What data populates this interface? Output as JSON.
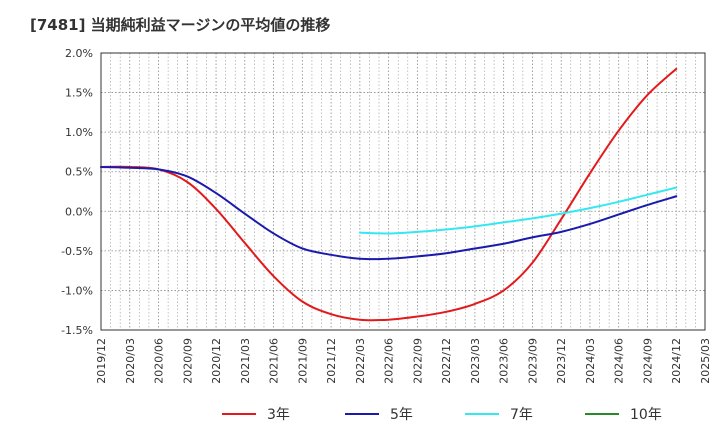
{
  "chart_data": {
    "type": "line",
    "title": "[7481]  当期純利益マージンの平均値の推移",
    "xlabel": "",
    "ylabel": "",
    "ylim": [
      -1.5,
      2.0
    ],
    "y_ticks": [
      2.0,
      1.5,
      1.0,
      0.5,
      0.0,
      -0.5,
      -1.0,
      -1.5
    ],
    "y_tick_labels": [
      "2.0%",
      "1.5%",
      "1.0%",
      "0.5%",
      "0.0%",
      "-0.5%",
      "-1.0%",
      "-1.5%"
    ],
    "x_tick_labels": [
      "2019/12",
      "2020/03",
      "2020/06",
      "2020/09",
      "2020/12",
      "2021/03",
      "2021/06",
      "2021/09",
      "2021/12",
      "2022/03",
      "2022/06",
      "2022/09",
      "2022/12",
      "2023/03",
      "2023/06",
      "2023/09",
      "2023/12",
      "2024/03",
      "2024/06",
      "2024/09",
      "2024/12",
      "2025/03"
    ],
    "grid": true,
    "legend_position": "bottom",
    "series": [
      {
        "name": "3年",
        "color": "#e31a1c",
        "x": [
          "2019/12",
          "2020/03",
          "2020/06",
          "2020/09",
          "2020/12",
          "2021/03",
          "2021/06",
          "2021/09",
          "2021/12",
          "2022/03",
          "2022/06",
          "2022/09",
          "2022/12",
          "2023/03",
          "2023/06",
          "2023/09",
          "2023/12",
          "2024/03",
          "2024/06",
          "2024/09",
          "2024/12"
        ],
        "values": [
          0.56,
          0.56,
          0.53,
          0.37,
          0.03,
          -0.4,
          -0.82,
          -1.14,
          -1.3,
          -1.37,
          -1.37,
          -1.33,
          -1.27,
          -1.17,
          -1.0,
          -0.65,
          -0.1,
          0.48,
          1.02,
          1.47,
          1.8
        ]
      },
      {
        "name": "5年",
        "color": "#1a1aad",
        "x": [
          "2019/12",
          "2020/03",
          "2020/06",
          "2020/09",
          "2020/12",
          "2021/03",
          "2021/06",
          "2021/09",
          "2021/12",
          "2022/03",
          "2022/06",
          "2022/09",
          "2022/12",
          "2023/03",
          "2023/06",
          "2023/09",
          "2023/12",
          "2024/03",
          "2024/06",
          "2024/09",
          "2024/12"
        ],
        "values": [
          0.56,
          0.55,
          0.53,
          0.44,
          0.23,
          -0.03,
          -0.28,
          -0.47,
          -0.55,
          -0.6,
          -0.6,
          -0.57,
          -0.53,
          -0.47,
          -0.41,
          -0.33,
          -0.26,
          -0.16,
          -0.04,
          0.08,
          0.19
        ]
      },
      {
        "name": "7年",
        "color": "#33e8f0",
        "x": [
          "2022/03",
          "2022/06",
          "2022/09",
          "2022/12",
          "2023/03",
          "2023/06",
          "2023/09",
          "2023/12",
          "2024/03",
          "2024/06",
          "2024/09",
          "2024/12"
        ],
        "values": [
          -0.27,
          -0.28,
          -0.26,
          -0.23,
          -0.19,
          -0.14,
          -0.09,
          -0.03,
          0.04,
          0.12,
          0.21,
          0.3
        ]
      },
      {
        "name": "10年",
        "color": "#2a8a2a",
        "x": [],
        "values": []
      }
    ]
  }
}
